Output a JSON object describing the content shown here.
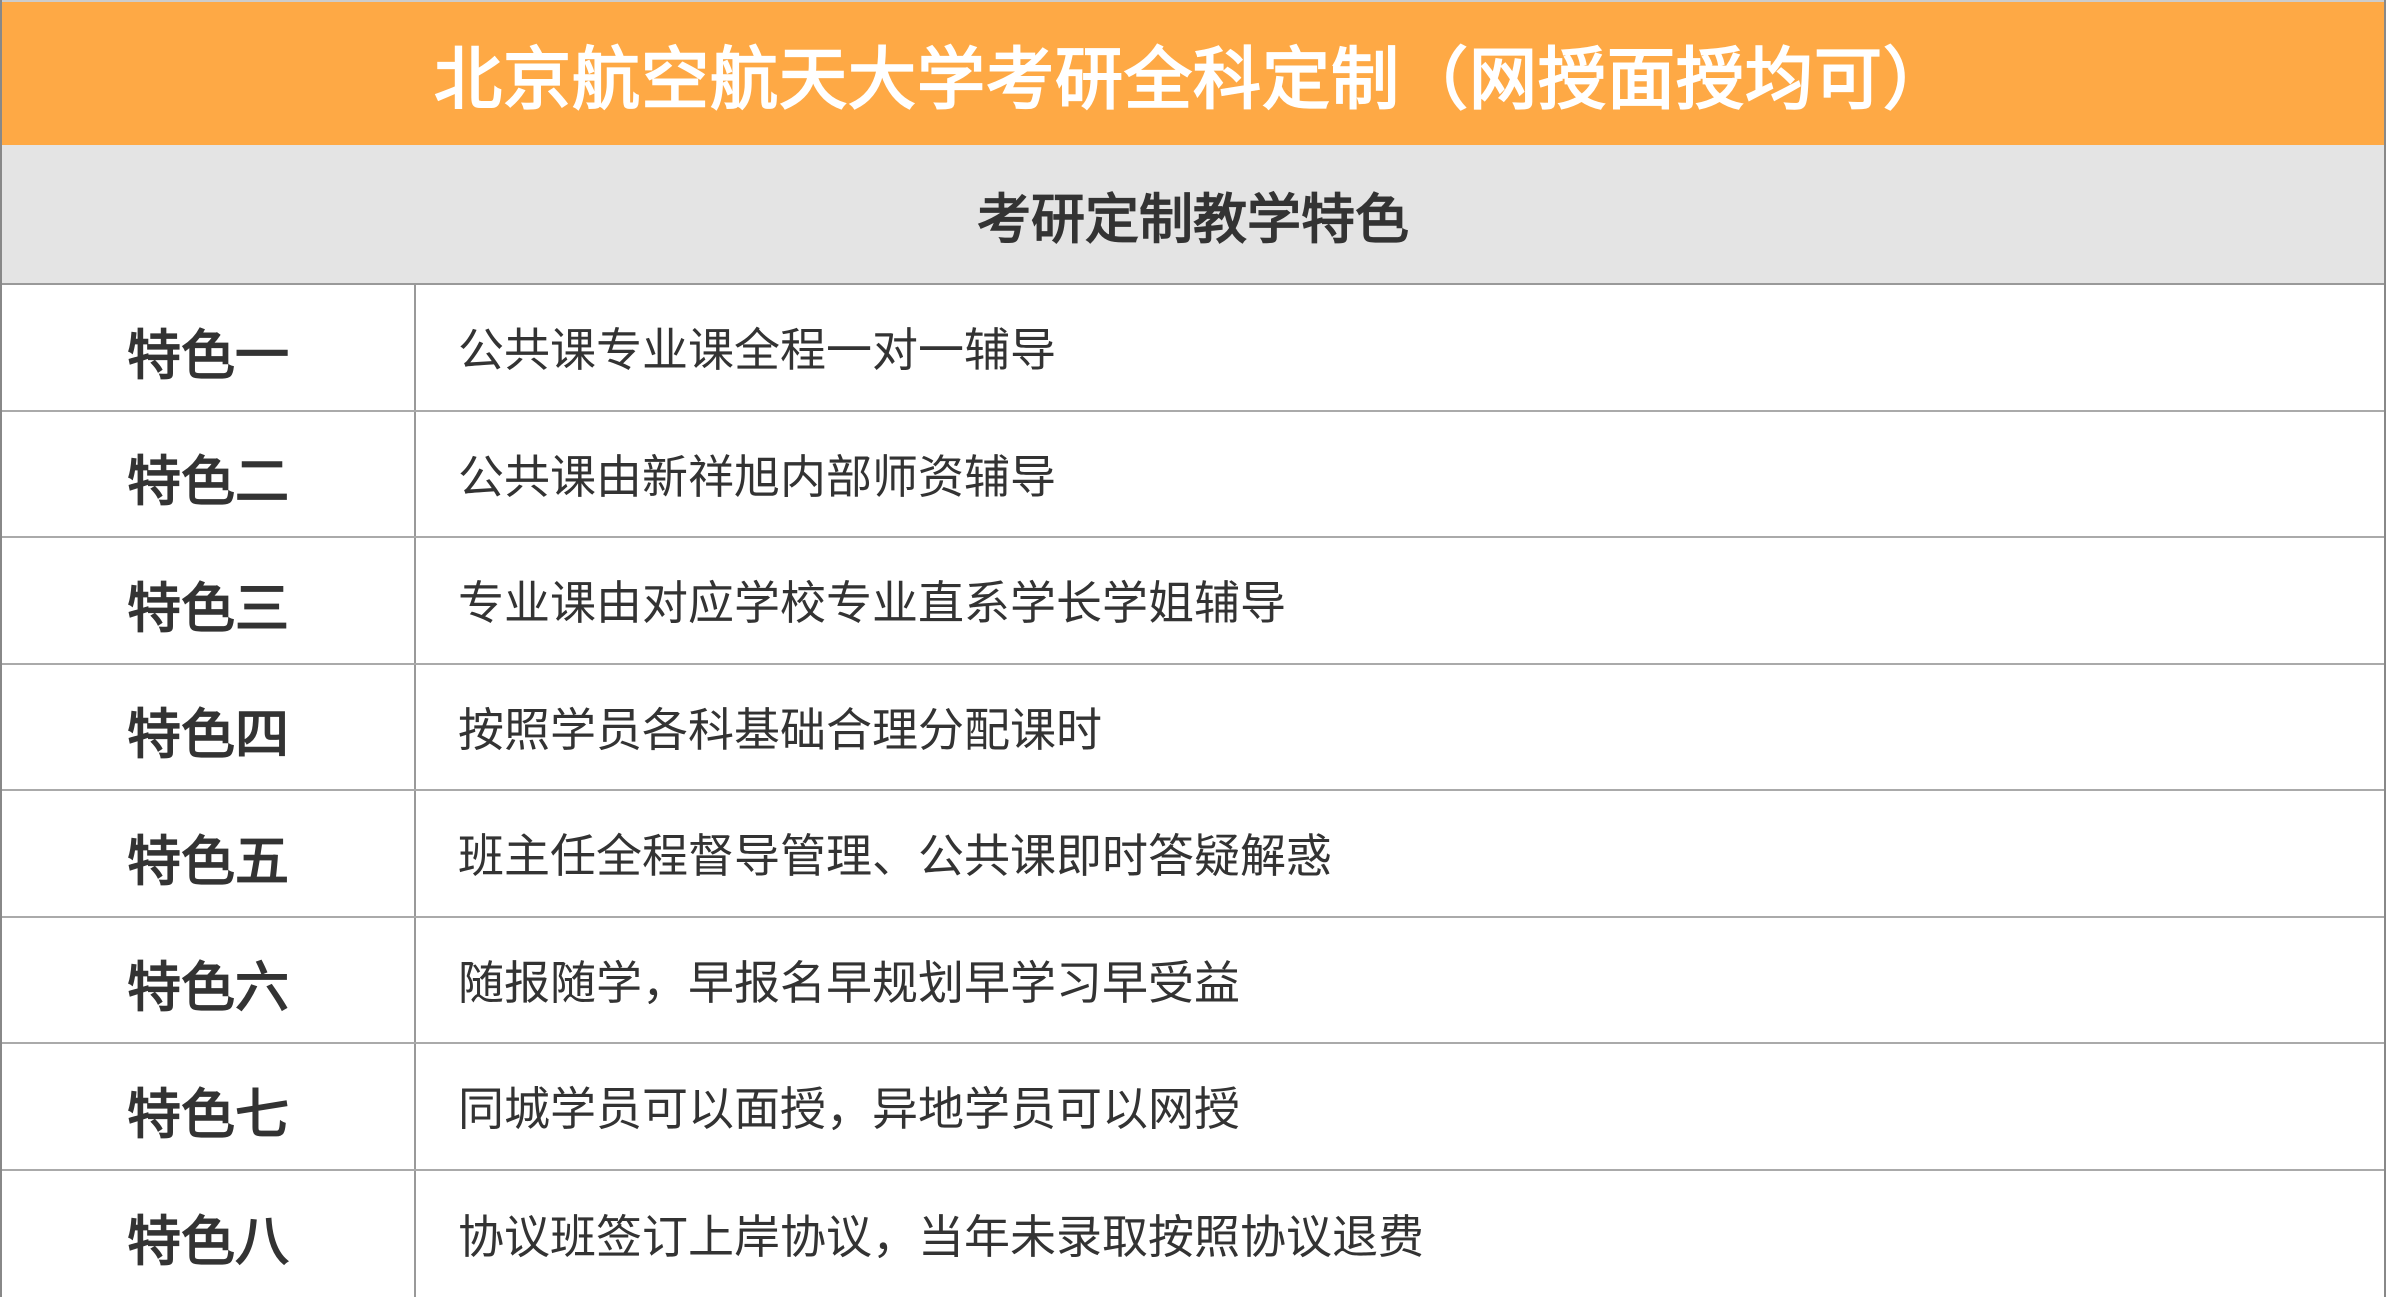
{
  "title": "北京航空航天大学考研全科定制（网授面授均可）",
  "subtitle": "考研定制教学特色",
  "colors": {
    "header_bg": "#FEA945",
    "subheader_bg": "#E4E4E4",
    "text": "#333333"
  },
  "rows": [
    {
      "label": "特色一",
      "text": "公共课专业课全程一对一辅导"
    },
    {
      "label": "特色二",
      "text": "公共课由新祥旭内部师资辅导"
    },
    {
      "label": "特色三",
      "text": "专业课由对应学校专业直系学长学姐辅导"
    },
    {
      "label": "特色四",
      "text": "按照学员各科基础合理分配课时"
    },
    {
      "label": "特色五",
      "text": "班主任全程督导管理、公共课即时答疑解惑"
    },
    {
      "label": "特色六",
      "text": "随报随学，早报名早规划早学习早受益"
    },
    {
      "label": "特色七",
      "text": "同城学员可以面授，异地学员可以网授"
    },
    {
      "label": "特色八",
      "text": "协议班签订上岸协议，当年未录取按照协议退费"
    }
  ]
}
